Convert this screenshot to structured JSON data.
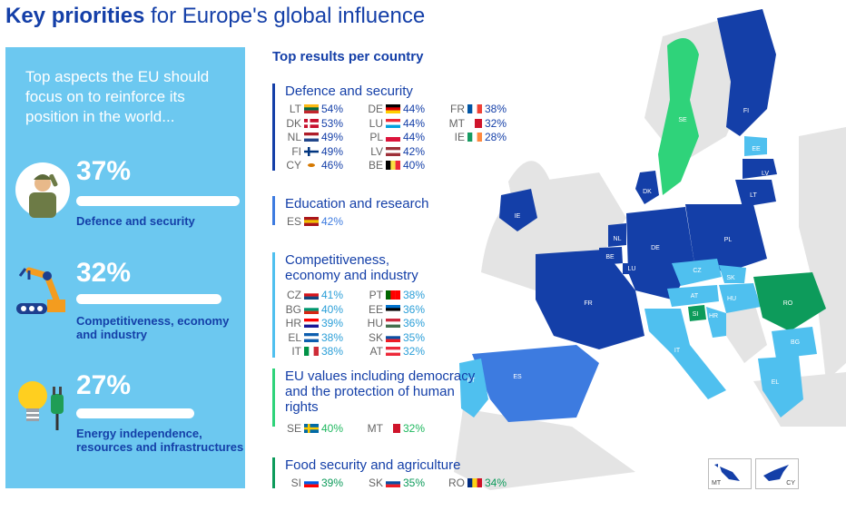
{
  "title": {
    "bold": "Key priorities",
    "rest": " for Europe's global influence"
  },
  "side": {
    "intro": "Top aspects the EU should focus on to reinforce its position in the world...",
    "stats": [
      {
        "pct": "37%",
        "label": "Defence and security",
        "value": 37,
        "icon": "soldier-icon"
      },
      {
        "pct": "32%",
        "label": "Competitiveness, economy and industry",
        "value": 32,
        "icon": "robot-arm-icon"
      },
      {
        "pct": "27%",
        "label": "Energy independence, resources and infrastructures",
        "value": 27,
        "icon": "lightbulb-plug-icon"
      }
    ]
  },
  "mid": {
    "heading": "Top results per country",
    "categories": [
      {
        "title": "Defence and security",
        "color": "#143fa8",
        "rows": [
          [
            "LT",
            "54%"
          ],
          [
            "DK",
            "53%"
          ],
          [
            "NL",
            "49%"
          ],
          [
            "FI",
            "49%"
          ],
          [
            "CY",
            "46%"
          ],
          [
            "DE",
            "44%"
          ],
          [
            "LU",
            "44%"
          ],
          [
            "PL",
            "44%"
          ],
          [
            "LV",
            "42%"
          ],
          [
            "BE",
            "40%"
          ],
          [
            "FR",
            "38%"
          ],
          [
            "MT",
            "32%"
          ],
          [
            "IE",
            "28%"
          ]
        ]
      },
      {
        "title": "Education and research",
        "color": "#3d7be0",
        "rows": [
          [
            "ES",
            "42%"
          ]
        ]
      },
      {
        "title": "Competitiveness, economy and industry",
        "color": "#4fc0ef",
        "rows": [
          [
            "CZ",
            "41%"
          ],
          [
            "BG",
            "40%"
          ],
          [
            "HR",
            "39%"
          ],
          [
            "EL",
            "38%"
          ],
          [
            "IT",
            "38%"
          ],
          [
            "PT",
            "38%"
          ],
          [
            "EE",
            "36%"
          ],
          [
            "HU",
            "36%"
          ],
          [
            "SK",
            "35%"
          ],
          [
            "AT",
            "32%"
          ]
        ]
      },
      {
        "title": "EU values including democracy and the protection of human rights",
        "color": "#2fd37a",
        "rows": [
          [
            "SE",
            "40%"
          ],
          [
            "MT",
            "32%"
          ]
        ]
      },
      {
        "title": "Food security and agriculture",
        "color": "#0d9b5b",
        "rows": [
          [
            "SI",
            "39%"
          ],
          [
            "SK",
            "35%"
          ],
          [
            "RO",
            "34%"
          ]
        ]
      }
    ]
  },
  "map_labels": [
    "FI",
    "SE",
    "EE",
    "LV",
    "LT",
    "DK",
    "IE",
    "NL",
    "BE",
    "LU",
    "DE",
    "PL",
    "CZ",
    "SK",
    "AT",
    "SI",
    "HR",
    "HU",
    "RO",
    "BG",
    "FR",
    "IT",
    "PT",
    "ES",
    "EL",
    "MT",
    "CY"
  ],
  "chart_data": {
    "type": "table",
    "title": "Key priorities for Europe's global influence",
    "eu_totals": [
      {
        "category": "Defence and security",
        "value": 37
      },
      {
        "category": "Competitiveness, economy and industry",
        "value": 32
      },
      {
        "category": "Energy independence, resources and infrastructures",
        "value": 27
      }
    ],
    "top_results_per_country": {
      "Defence and security": {
        "LT": 54,
        "DK": 53,
        "NL": 49,
        "FI": 49,
        "CY": 46,
        "DE": 44,
        "LU": 44,
        "PL": 44,
        "LV": 42,
        "BE": 40,
        "FR": 38,
        "MT": 32,
        "IE": 28
      },
      "Education and research": {
        "ES": 42
      },
      "Competitiveness, economy and industry": {
        "CZ": 41,
        "BG": 40,
        "HR": 39,
        "EL": 38,
        "IT": 38,
        "PT": 38,
        "EE": 36,
        "HU": 36,
        "SK": 35,
        "AT": 32
      },
      "EU values including democracy and the protection of human rights": {
        "SE": 40,
        "MT": 32
      },
      "Food security and agriculture": {
        "SI": 39,
        "SK": 35,
        "RO": 34
      }
    }
  }
}
